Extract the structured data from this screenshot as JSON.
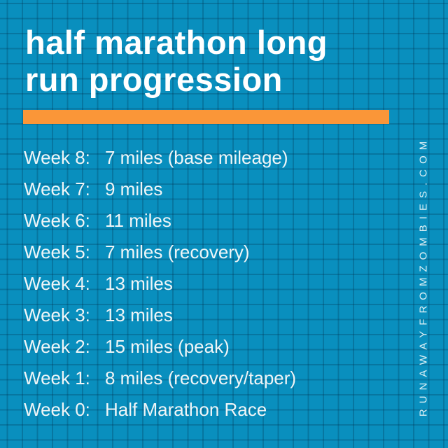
{
  "title": {
    "line1": "half marathon long",
    "line2": "run progression"
  },
  "schedule": [
    {
      "label": "Week 8:",
      "value": "7 miles (base mileage)"
    },
    {
      "label": "Week 7:",
      "value": "9 miles"
    },
    {
      "label": "Week 6:",
      "value": "11 miles"
    },
    {
      "label": "Week 5:",
      "value": "7 miles (recovery)"
    },
    {
      "label": "Week 4:",
      "value": "13 miles"
    },
    {
      "label": "Week 3:",
      "value": "13 miles"
    },
    {
      "label": "Week 2:",
      "value": "15 miles (peak)"
    },
    {
      "label": "Week 1:",
      "value": "8 miles (recovery/taper)"
    },
    {
      "label": "Week 0:",
      "value": "Half Marathon Race"
    }
  ],
  "watermark": {
    "text": "RUNAWAYFROMZOMBIES.COM"
  },
  "colors": {
    "background": "#098FBE",
    "grid_line": "#067AA2",
    "accent_bar": "#FA9638",
    "title_text": "#FFFFFF",
    "body_text": "#EFF5F7"
  }
}
